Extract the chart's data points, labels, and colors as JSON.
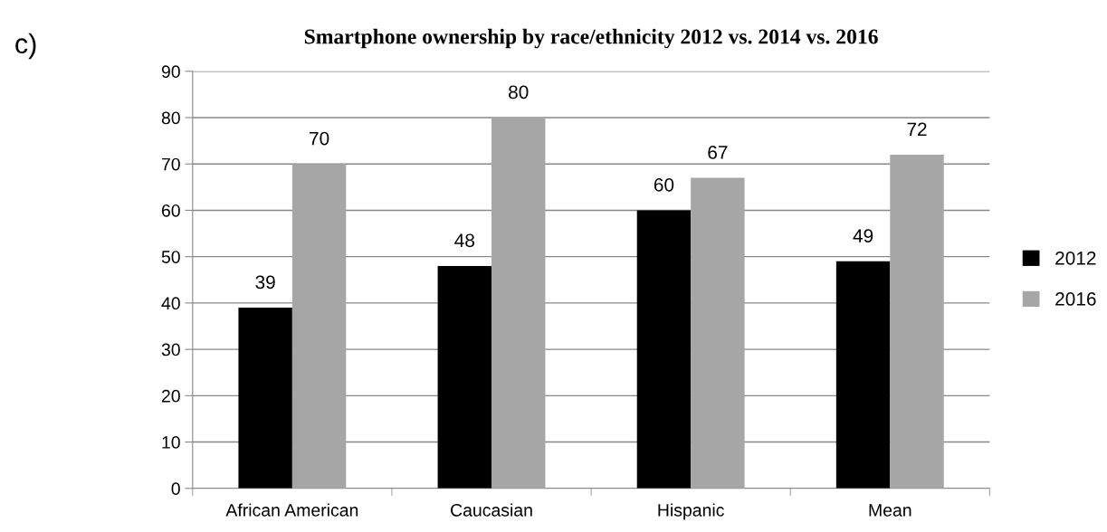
{
  "chart_data": {
    "type": "bar",
    "title": "Smartphone ownership by race/ethnicity 2012 vs. 2014 vs. 2016",
    "annotations": [
      "c)"
    ],
    "categories": [
      "African American",
      "Caucasian",
      "Hispanic",
      "Mean"
    ],
    "series": [
      {
        "name": "2012",
        "color": "#000000",
        "values": [
          39,
          48,
          60,
          49
        ]
      },
      {
        "name": "2016",
        "color": "#a6a6a6",
        "values": [
          70,
          80,
          67,
          72
        ]
      }
    ],
    "ylim": [
      0,
      90
    ],
    "yticks": [
      0,
      10,
      20,
      30,
      40,
      50,
      60,
      70,
      80,
      90
    ],
    "grid": "y",
    "legend": "right",
    "data_labels": true
  }
}
